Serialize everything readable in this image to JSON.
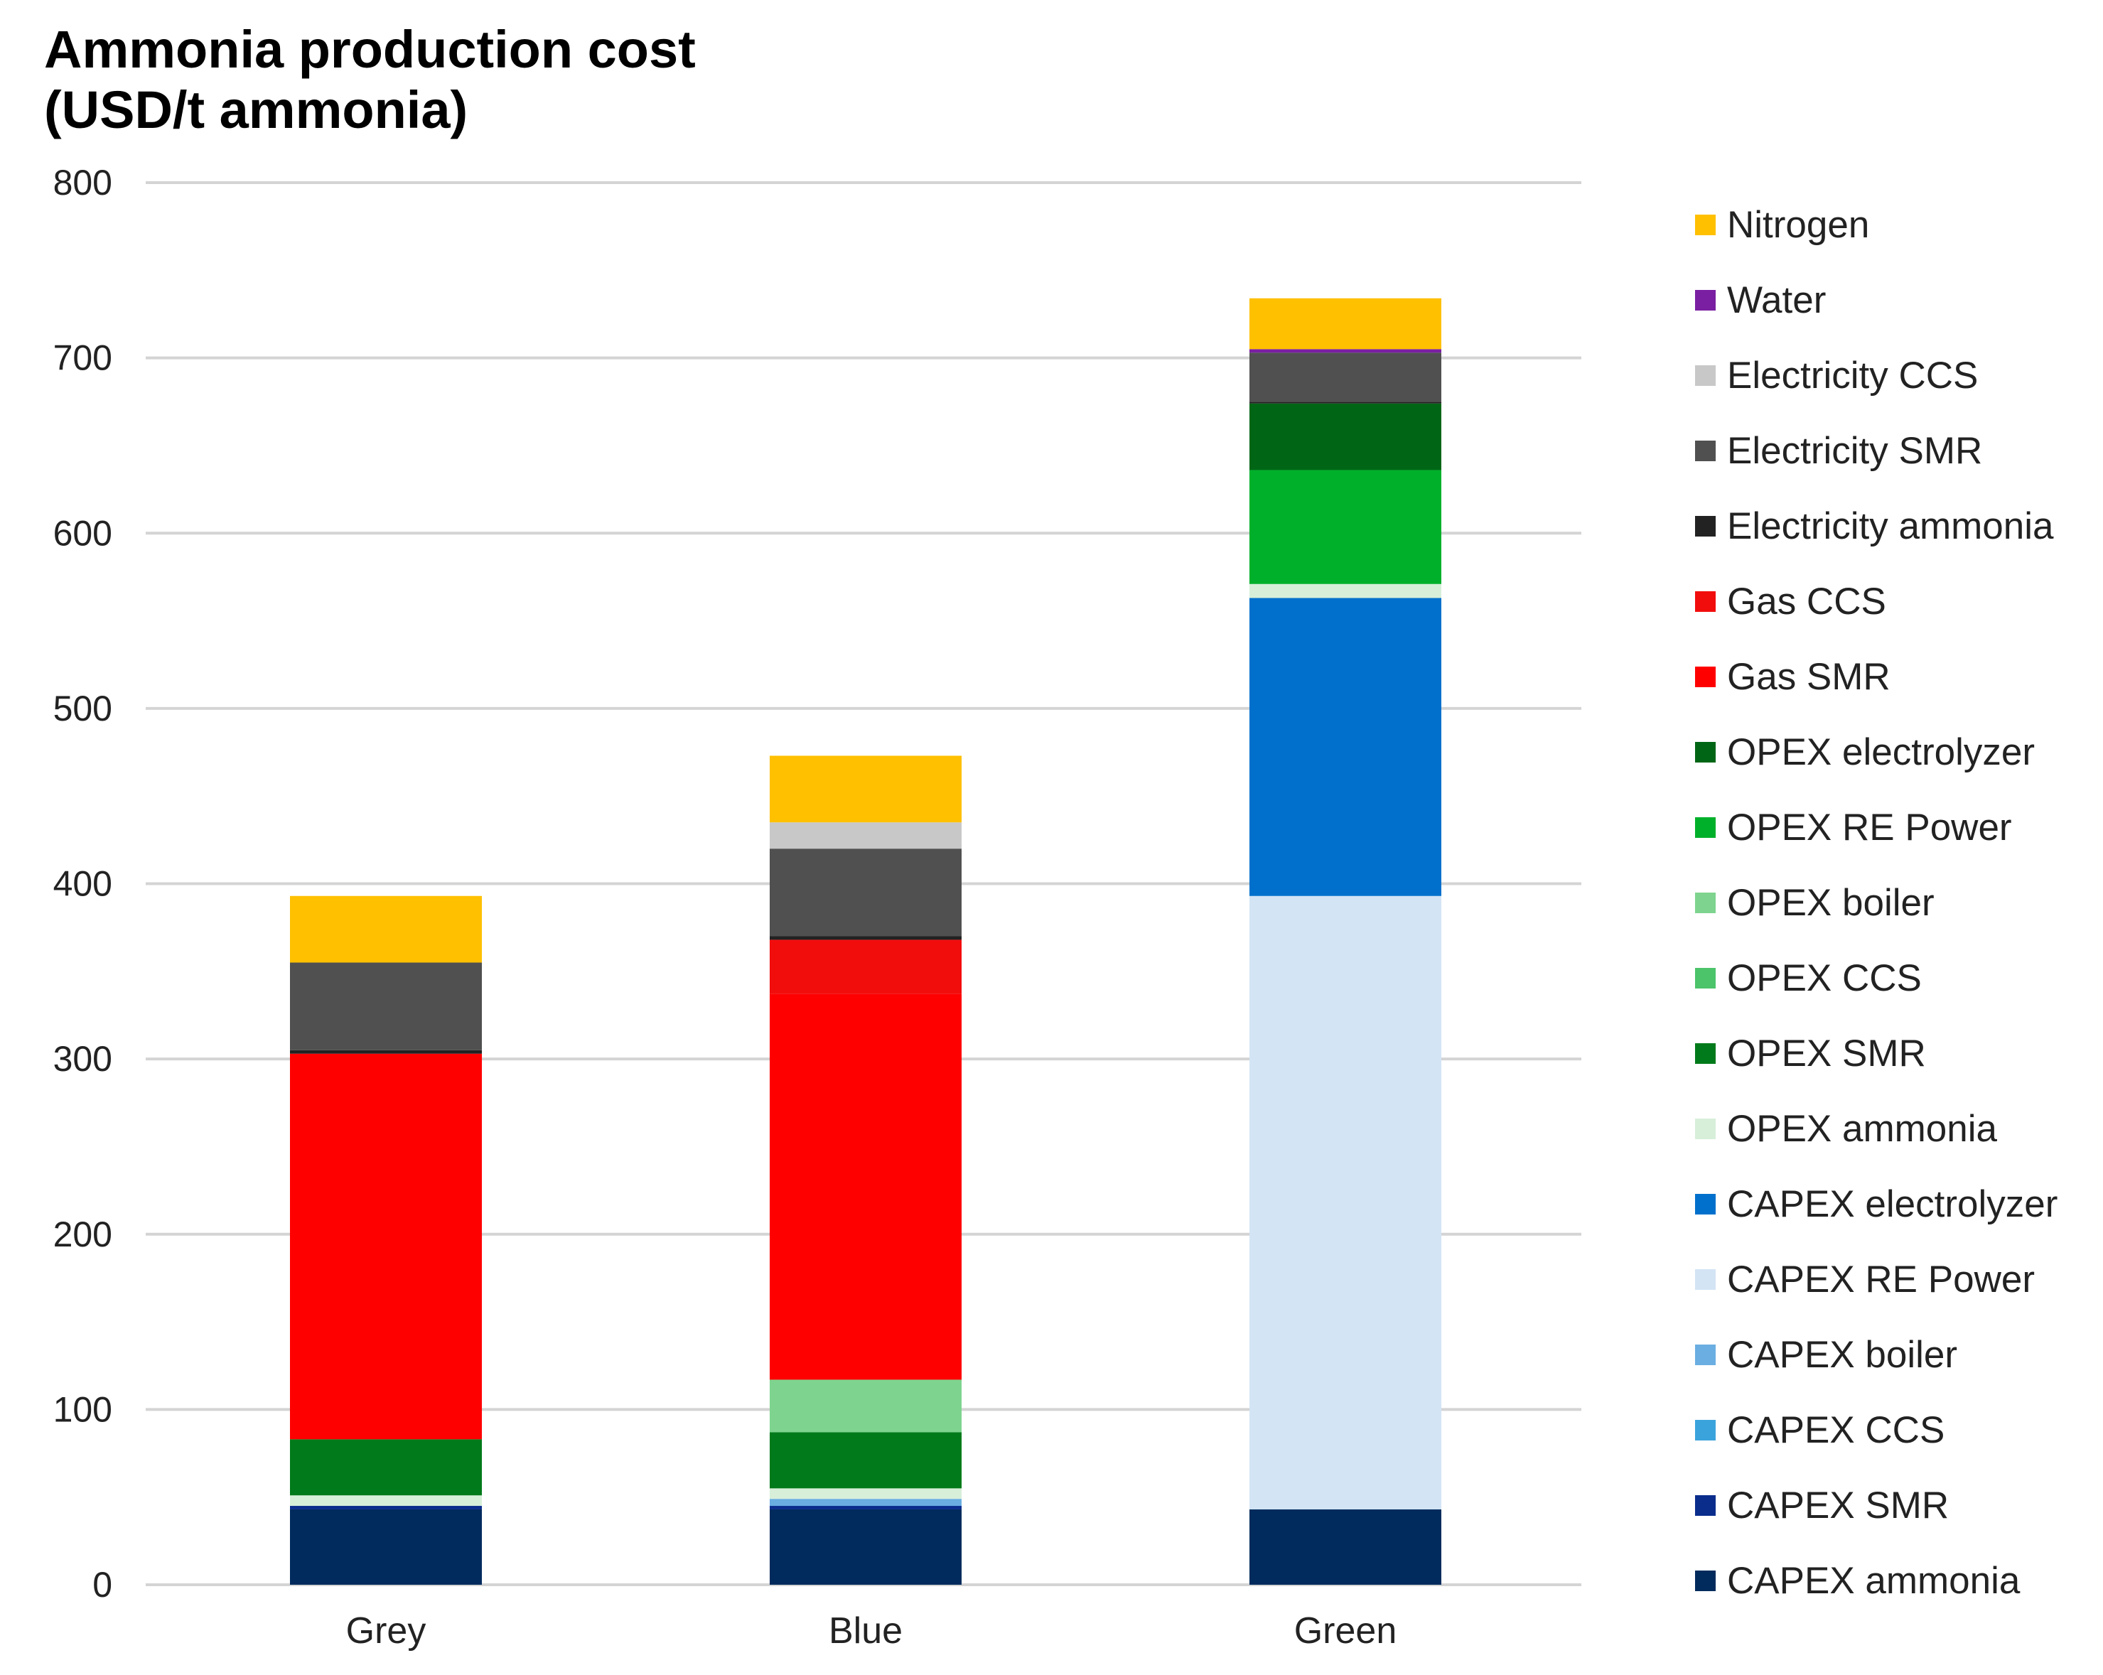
{
  "chart_data": {
    "type": "bar",
    "stacked": true,
    "title": [
      "Ammonia production cost",
      "(USD/t ammonia)"
    ],
    "xlabel": "",
    "ylabel": "",
    "ylim": [
      0,
      800
    ],
    "yticks": [
      0,
      100,
      200,
      300,
      400,
      500,
      600,
      700,
      800
    ],
    "grid": true,
    "legend_position": "right",
    "categories": [
      "Grey",
      "Blue",
      "Green"
    ],
    "series": [
      {
        "name": "CAPEX ammonia",
        "color": "#002b5c",
        "values": [
          43,
          43,
          43
        ]
      },
      {
        "name": "CAPEX SMR",
        "color": "#0a2d8c",
        "values": [
          2,
          2,
          0
        ]
      },
      {
        "name": "CAPEX CCS",
        "color": "#3ba3dc",
        "values": [
          0,
          0,
          0
        ]
      },
      {
        "name": "CAPEX boiler",
        "color": "#6aaee2",
        "values": [
          0,
          4,
          0
        ]
      },
      {
        "name": "CAPEX RE Power",
        "color": "#d3e4f5",
        "values": [
          0,
          0,
          350
        ]
      },
      {
        "name": "CAPEX electrolyzer",
        "color": "#0070cc",
        "values": [
          0,
          0,
          170
        ]
      },
      {
        "name": "OPEX ammonia",
        "color": "#d7efd9",
        "values": [
          6,
          6,
          8
        ]
      },
      {
        "name": "OPEX SMR",
        "color": "#007a1a",
        "values": [
          32,
          32,
          0
        ]
      },
      {
        "name": "OPEX CCS",
        "color": "#4cc46a",
        "values": [
          0,
          0,
          0
        ]
      },
      {
        "name": "OPEX boiler",
        "color": "#7ed48e",
        "values": [
          0,
          30,
          0
        ]
      },
      {
        "name": "OPEX RE Power",
        "color": "#00b02a",
        "values": [
          0,
          0,
          65
        ]
      },
      {
        "name": "OPEX electrolyzer",
        "color": "#006616",
        "values": [
          0,
          0,
          38
        ]
      },
      {
        "name": "Gas SMR",
        "color": "#ff0000",
        "values": [
          220,
          220,
          0
        ]
      },
      {
        "name": "Gas CCS",
        "color": "#f20d0d",
        "values": [
          0,
          31,
          0
        ]
      },
      {
        "name": "Electricity ammonia",
        "color": "#222222",
        "values": [
          2,
          2,
          1
        ]
      },
      {
        "name": "Electricity SMR",
        "color": "#505050",
        "values": [
          50,
          50,
          28
        ]
      },
      {
        "name": "Electricity CCS",
        "color": "#c8c8c8",
        "values": [
          0,
          15,
          0
        ]
      },
      {
        "name": "Water",
        "color": "#7a1fa2",
        "values": [
          0,
          0,
          2
        ]
      },
      {
        "name": "Nitrogen",
        "color": "#ffc000",
        "values": [
          38,
          38,
          29
        ]
      }
    ]
  }
}
